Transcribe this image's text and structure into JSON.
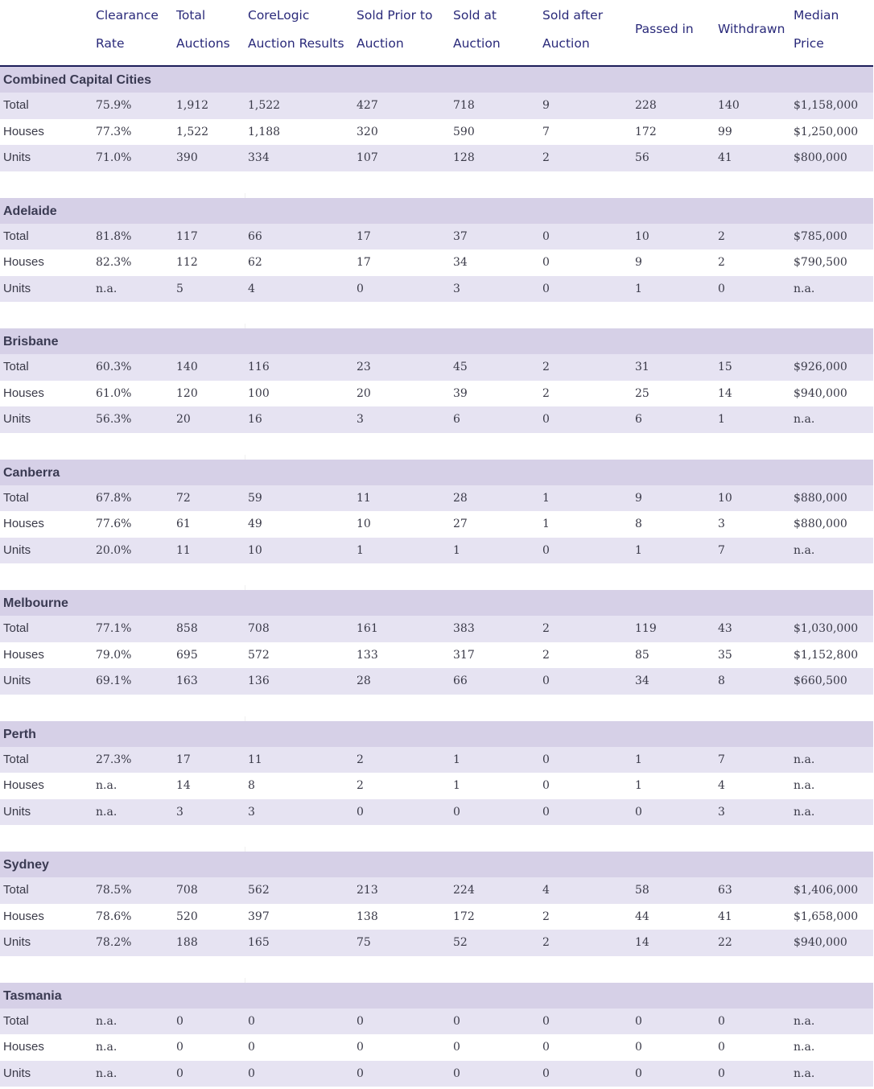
{
  "columns": [
    {
      "line1": "Clearance",
      "line2": "Rate"
    },
    {
      "line1": "Total",
      "line2": "Auctions"
    },
    {
      "line1": "CoreLogic",
      "line2": "Auction Results"
    },
    {
      "line1": "Sold Prior to",
      "line2": "Auction"
    },
    {
      "line1": "Sold at",
      "line2": "Auction"
    },
    {
      "line1": "Sold after",
      "line2": "Auction"
    },
    {
      "single": "Passed in"
    },
    {
      "single": "Withdrawn"
    },
    {
      "line1": "Median",
      "line2": "Price"
    }
  ],
  "groups": [
    {
      "name": "Combined Capital Cities",
      "rows": [
        [
          "Total",
          "75.9%",
          "1,912",
          "1,522",
          "427",
          "718",
          "9",
          "228",
          "140",
          "$1,158,000"
        ],
        [
          "Houses",
          "77.3%",
          "1,522",
          "1,188",
          "320",
          "590",
          "7",
          "172",
          "99",
          "$1,250,000"
        ],
        [
          "Units",
          "71.0%",
          "390",
          "334",
          "107",
          "128",
          "2",
          "56",
          "41",
          "$800,000"
        ]
      ]
    },
    {
      "name": "Adelaide",
      "rows": [
        [
          "Total",
          "81.8%",
          "117",
          "66",
          "17",
          "37",
          "0",
          "10",
          "2",
          "$785,000"
        ],
        [
          "Houses",
          "82.3%",
          "112",
          "62",
          "17",
          "34",
          "0",
          "9",
          "2",
          "$790,500"
        ],
        [
          "Units",
          "n.a.",
          "5",
          "4",
          "0",
          "3",
          "0",
          "1",
          "0",
          "n.a."
        ]
      ]
    },
    {
      "name": "Brisbane",
      "rows": [
        [
          "Total",
          "60.3%",
          "140",
          "116",
          "23",
          "45",
          "2",
          "31",
          "15",
          "$926,000"
        ],
        [
          "Houses",
          "61.0%",
          "120",
          "100",
          "20",
          "39",
          "2",
          "25",
          "14",
          "$940,000"
        ],
        [
          "Units",
          "56.3%",
          "20",
          "16",
          "3",
          "6",
          "0",
          "6",
          "1",
          "n.a."
        ]
      ]
    },
    {
      "name": "Canberra",
      "rows": [
        [
          "Total",
          "67.8%",
          "72",
          "59",
          "11",
          "28",
          "1",
          "9",
          "10",
          "$880,000"
        ],
        [
          "Houses",
          "77.6%",
          "61",
          "49",
          "10",
          "27",
          "1",
          "8",
          "3",
          "$880,000"
        ],
        [
          "Units",
          "20.0%",
          "11",
          "10",
          "1",
          "1",
          "0",
          "1",
          "7",
          "n.a."
        ]
      ]
    },
    {
      "name": "Melbourne",
      "rows": [
        [
          "Total",
          "77.1%",
          "858",
          "708",
          "161",
          "383",
          "2",
          "119",
          "43",
          "$1,030,000"
        ],
        [
          "Houses",
          "79.0%",
          "695",
          "572",
          "133",
          "317",
          "2",
          "85",
          "35",
          "$1,152,800"
        ],
        [
          "Units",
          "69.1%",
          "163",
          "136",
          "28",
          "66",
          "0",
          "34",
          "8",
          "$660,500"
        ]
      ]
    },
    {
      "name": "Perth",
      "rows": [
        [
          "Total",
          "27.3%",
          "17",
          "11",
          "2",
          "1",
          "0",
          "1",
          "7",
          "n.a."
        ],
        [
          "Houses",
          "n.a.",
          "14",
          "8",
          "2",
          "1",
          "0",
          "1",
          "4",
          "n.a."
        ],
        [
          "Units",
          "n.a.",
          "3",
          "3",
          "0",
          "0",
          "0",
          "0",
          "3",
          "n.a."
        ]
      ]
    },
    {
      "name": "Sydney",
      "rows": [
        [
          "Total",
          "78.5%",
          "708",
          "562",
          "213",
          "224",
          "4",
          "58",
          "63",
          "$1,406,000"
        ],
        [
          "Houses",
          "78.6%",
          "520",
          "397",
          "138",
          "172",
          "2",
          "44",
          "41",
          "$1,658,000"
        ],
        [
          "Units",
          "78.2%",
          "188",
          "165",
          "75",
          "52",
          "2",
          "14",
          "22",
          "$940,000"
        ]
      ]
    },
    {
      "name": "Tasmania",
      "rows": [
        [
          "Total",
          "n.a.",
          "0",
          "0",
          "0",
          "0",
          "0",
          "0",
          "0",
          "n.a."
        ],
        [
          "Houses",
          "n.a.",
          "0",
          "0",
          "0",
          "0",
          "0",
          "0",
          "0",
          "n.a."
        ],
        [
          "Units",
          "n.a.",
          "0",
          "0",
          "0",
          "0",
          "0",
          "0",
          "0",
          "n.a."
        ]
      ]
    }
  ]
}
